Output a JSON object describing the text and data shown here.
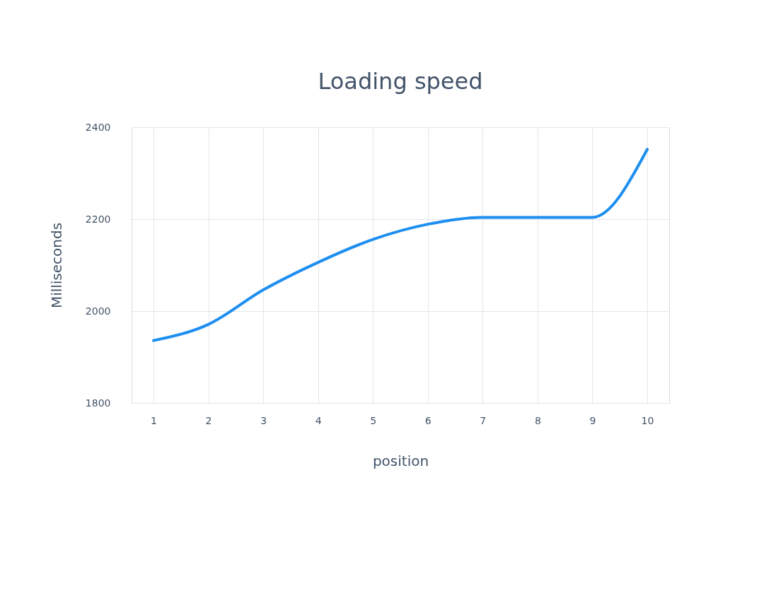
{
  "chart_data": {
    "type": "line",
    "title": "Loading speed",
    "xlabel": "position",
    "ylabel": "Milliseconds",
    "x": [
      1,
      2,
      3,
      4,
      5,
      6,
      7,
      8,
      9,
      10
    ],
    "series": [
      {
        "color": "#1e8ff0",
        "values": [
          1936,
          1971,
          2046,
          2106,
          2156,
          2189,
          2204,
          2204,
          2204,
          2352
        ]
      }
    ],
    "xlim": [
      0.6,
      10.4
    ],
    "xticks": [
      1,
      2,
      3,
      4,
      5,
      6,
      7,
      8,
      9,
      10
    ],
    "ylim": [
      1800,
      2400
    ],
    "yticks": [
      1800,
      2000,
      2200,
      2400
    ],
    "grid": true,
    "marker": "none",
    "line_style": "solid"
  }
}
